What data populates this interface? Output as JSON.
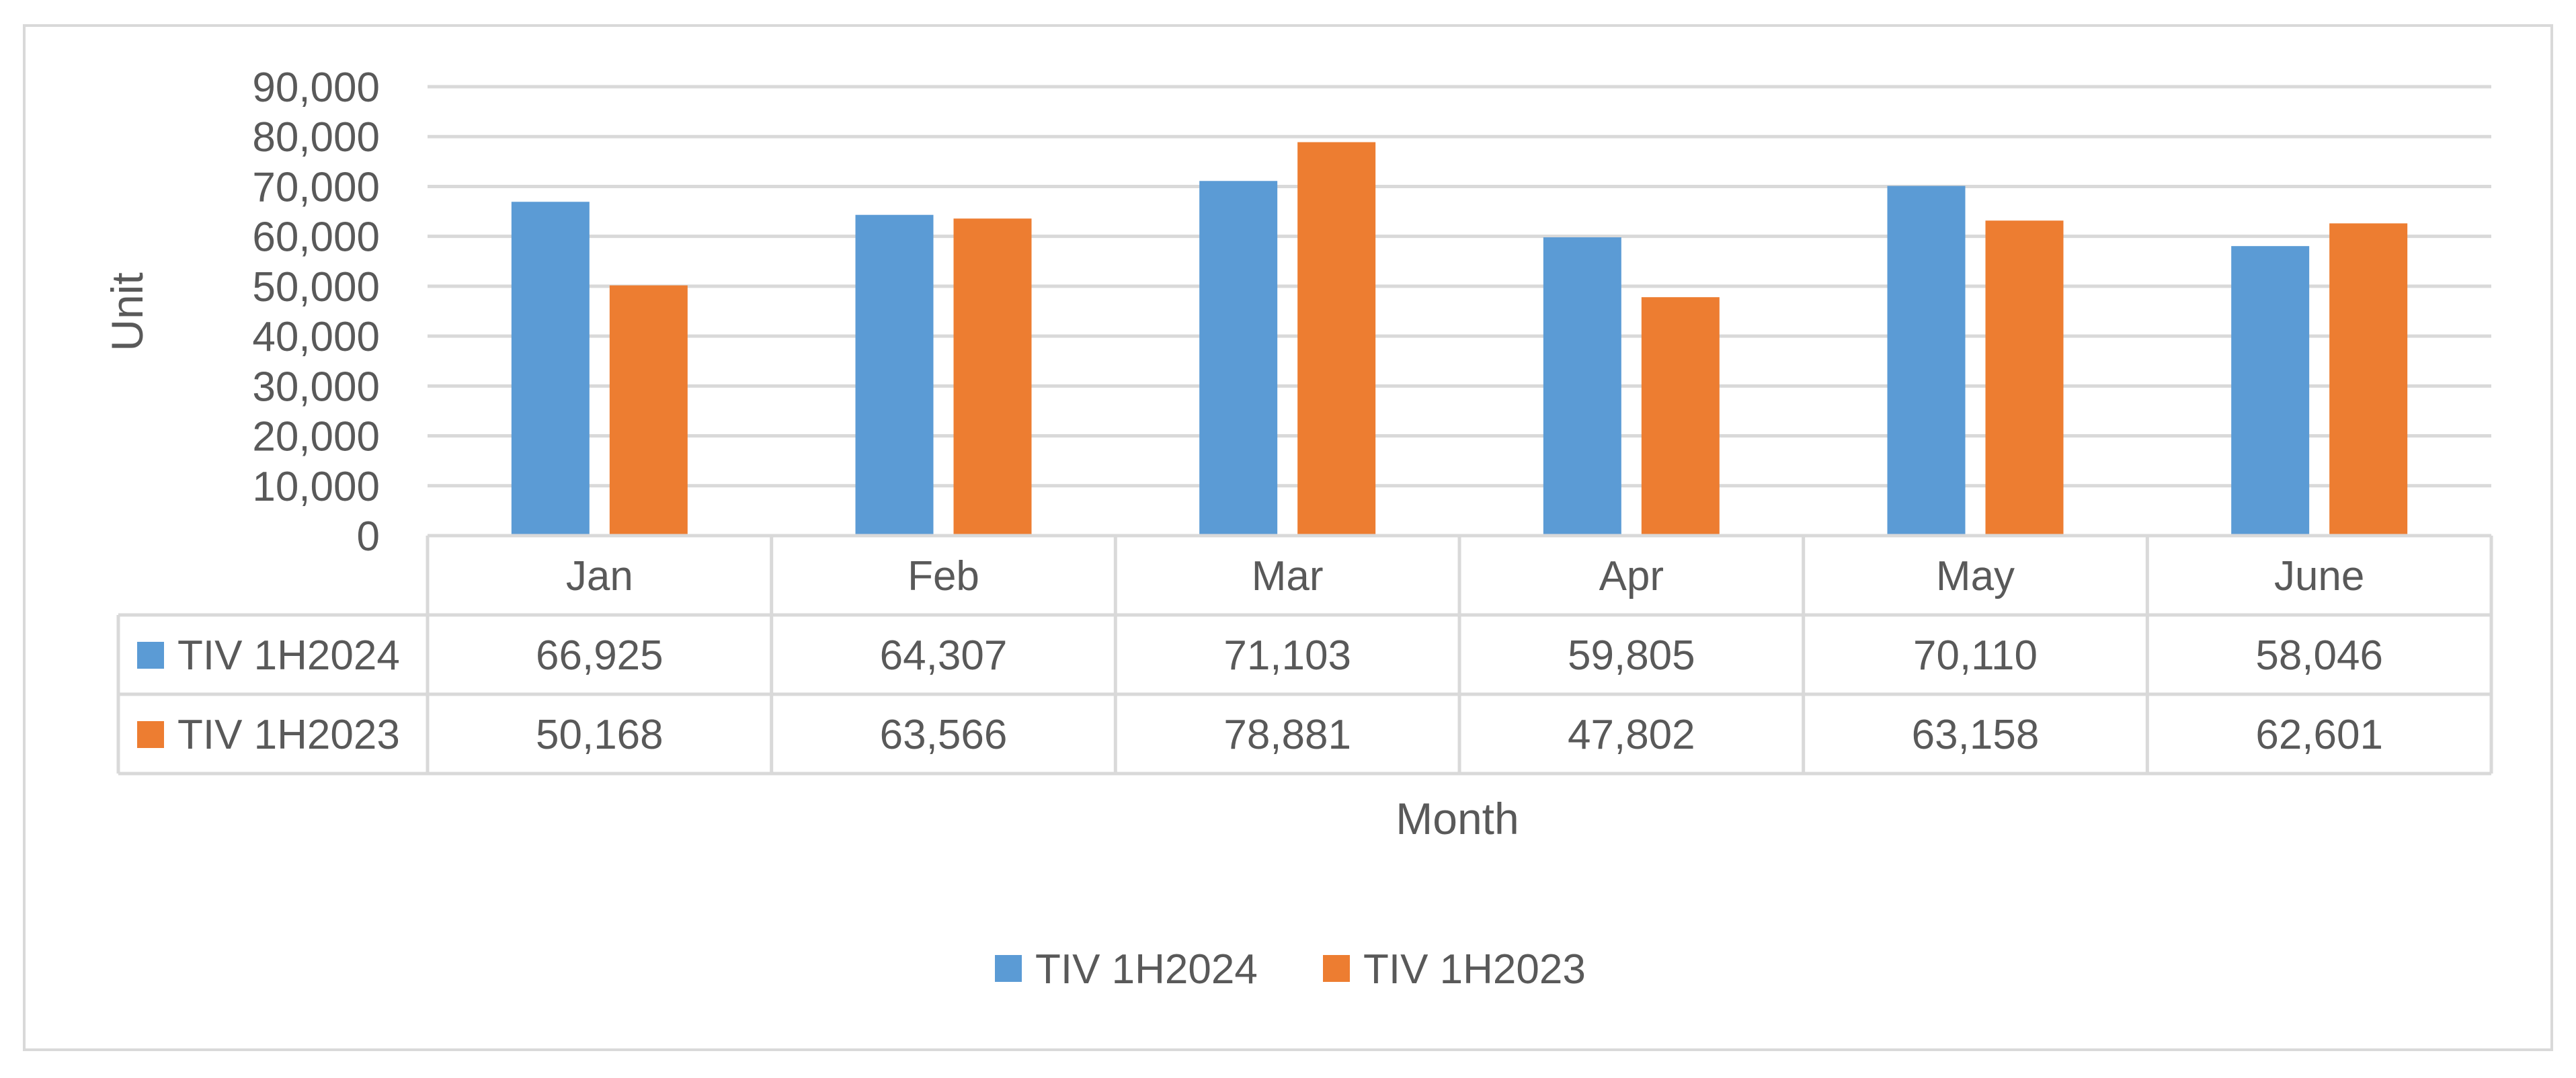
{
  "chart_data": {
    "type": "bar",
    "title": "",
    "xlabel": "Month",
    "ylabel": "Unit",
    "categories": [
      "Jan",
      "Feb",
      "Mar",
      "Apr",
      "May",
      "June"
    ],
    "series": [
      {
        "name": "TIV 1H2024",
        "color": "#5B9BD5",
        "values": [
          66925,
          64307,
          71103,
          59805,
          70110,
          58046
        ],
        "labels": [
          "66,925",
          "64,307",
          "71,103",
          "59,805",
          "70,110",
          "58,046"
        ]
      },
      {
        "name": "TIV 1H2023",
        "color": "#ED7D31",
        "values": [
          50168,
          63566,
          78881,
          47802,
          63158,
          62601
        ],
        "labels": [
          "50,168",
          "63,566",
          "78,881",
          "47,802",
          "63,158",
          "62,601"
        ]
      }
    ],
    "ylim": [
      0,
      90000
    ],
    "yticks": [
      0,
      10000,
      20000,
      30000,
      40000,
      50000,
      60000,
      70000,
      80000,
      90000
    ],
    "ytick_labels": [
      "0",
      "10,000",
      "20,000",
      "30,000",
      "40,000",
      "50,000",
      "60,000",
      "70,000",
      "80,000",
      "90,000"
    ],
    "grid": true,
    "data_table": true,
    "legend_position": "bottom"
  },
  "colors": {
    "grid": "#D9D9D9",
    "text": "#595959",
    "border": "#D9D9D9"
  }
}
